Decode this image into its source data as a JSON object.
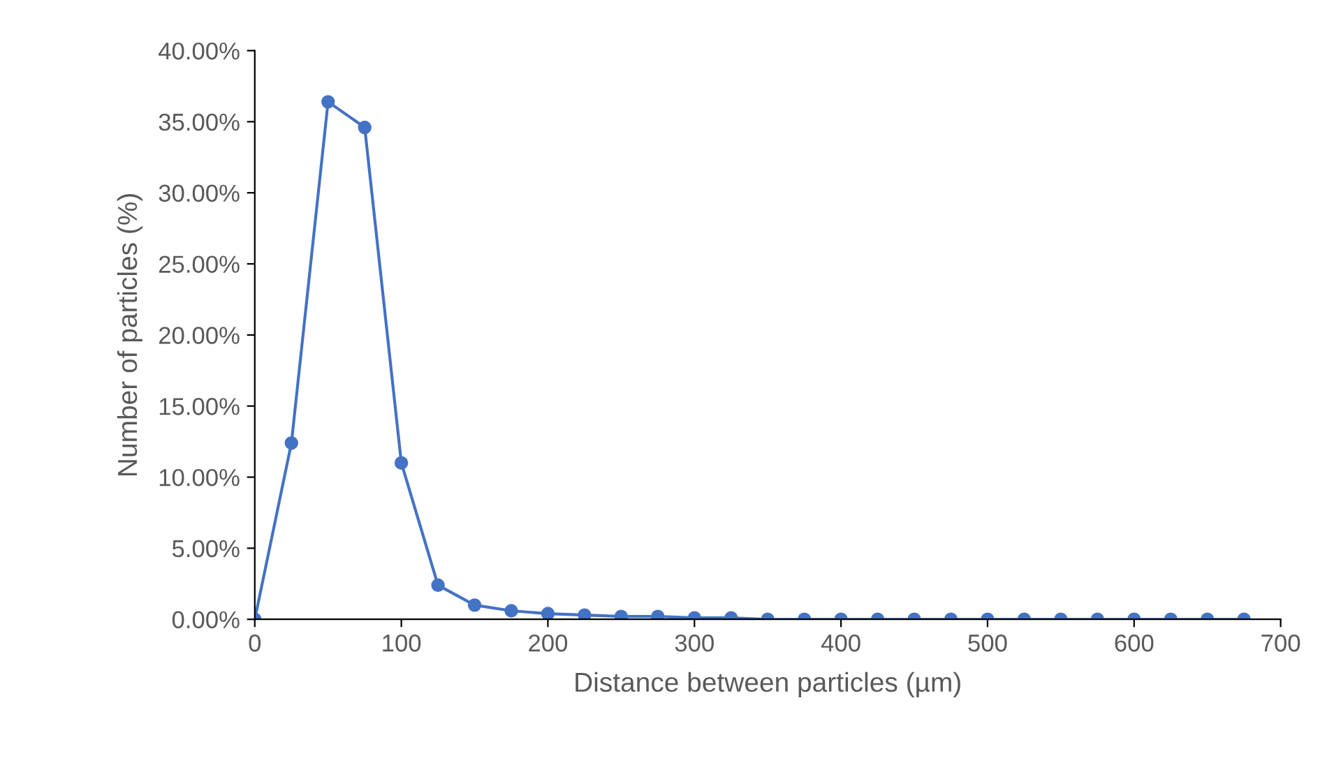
{
  "chart_data": {
    "type": "line",
    "xlabel": "Distance between particles (µm)",
    "ylabel": "Number of particles (%)",
    "x": [
      0,
      25,
      50,
      75,
      100,
      125,
      150,
      175,
      200,
      225,
      250,
      275,
      300,
      325,
      350,
      375,
      400,
      425,
      450,
      475,
      500,
      525,
      550,
      575,
      600,
      625,
      650,
      675
    ],
    "series": [
      {
        "color": "#4472c4",
        "values": [
          0,
          12.4,
          36.4,
          34.6,
          11.0,
          2.4,
          1.0,
          0.6,
          0.4,
          0.3,
          0.2,
          0.2,
          0.1,
          0.1,
          0,
          0,
          0,
          0,
          0,
          0,
          0,
          0,
          0,
          0,
          0,
          0,
          0,
          0
        ]
      }
    ],
    "xlim": [
      0,
      700
    ],
    "xticks": [
      0,
      100,
      200,
      300,
      400,
      500,
      600,
      700
    ],
    "ylim": [
      0,
      40
    ],
    "yticks": [
      {
        "value": 0,
        "label": "0.00%"
      },
      {
        "value": 5,
        "label": "5.00%"
      },
      {
        "value": 10,
        "label": "10.00%"
      },
      {
        "value": 15,
        "label": "15.00%"
      },
      {
        "value": 20,
        "label": "20.00%"
      },
      {
        "value": 25,
        "label": "25.00%"
      },
      {
        "value": 30,
        "label": "30.00%"
      },
      {
        "value": 35,
        "label": "35.00%"
      },
      {
        "value": 40,
        "label": "40.00%"
      }
    ],
    "marker": "circle",
    "line_style": "solid",
    "grid": false,
    "legend": false
  }
}
